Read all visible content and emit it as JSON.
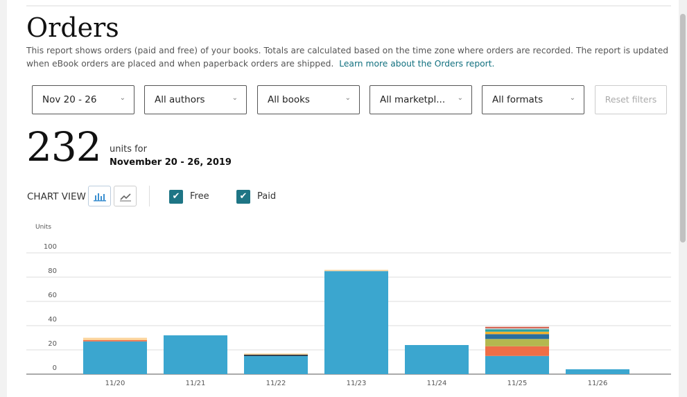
{
  "title": "Orders",
  "description": "This report shows orders (paid and free) of your books. Totals are calculated based on the time zone where orders are recorded. The report is updated when eBook orders are placed and when paperback orders are shipped.",
  "learn_more": "Learn more about the Orders report.",
  "filters": [
    "Nov 20 - 26",
    "All authors",
    "All books",
    "All marketpl...",
    "All formats"
  ],
  "reset_label": "Reset filters",
  "total_units": "232",
  "units_for": "units for",
  "date_range": "November 20 - 26, 2019",
  "chart_view_label": "CHART VIEW",
  "checkboxes": [
    {
      "label": "Free",
      "checked": true
    },
    {
      "label": "Paid",
      "checked": true
    }
  ],
  "colors": {
    "accent": "#1e7585",
    "bar": "#3ba6cf"
  },
  "chart_data": {
    "type": "bar",
    "stacked": true,
    "ylabel": "Units",
    "ylim": [
      0,
      100
    ],
    "yticks": [
      0,
      20,
      40,
      60,
      80,
      100
    ],
    "categories": [
      "11/20",
      "11/21",
      "11/22",
      "11/23",
      "11/24",
      "11/25",
      "11/26"
    ],
    "series": [
      {
        "color": "#3ba6cf",
        "values": [
          27,
          32,
          15,
          85,
          24,
          15,
          4
        ]
      },
      {
        "color": "#ee6e47",
        "values": [
          1,
          0,
          0,
          0,
          0,
          8,
          0
        ]
      },
      {
        "color": "#b4b84f",
        "values": [
          0,
          0,
          0,
          0,
          0,
          6,
          0
        ]
      },
      {
        "color": "#2a6f9e",
        "values": [
          0,
          0,
          0,
          0,
          0,
          4,
          0
        ]
      },
      {
        "color": "#f0b32e",
        "values": [
          0,
          0,
          0,
          0,
          0,
          2,
          0
        ]
      },
      {
        "color": "#2aa3a0",
        "values": [
          0,
          0,
          0,
          0,
          0,
          2,
          0
        ]
      },
      {
        "color": "#1c2b3a",
        "values": [
          0,
          0,
          1,
          0,
          0,
          0,
          0
        ]
      },
      {
        "color": "#c9c9c9",
        "values": [
          0,
          0,
          0,
          0,
          0,
          1,
          0
        ]
      },
      {
        "color": "#d6503a",
        "values": [
          0,
          0,
          0,
          0,
          0,
          1,
          0
        ]
      },
      {
        "color": "#fcd49c",
        "values": [
          2,
          0,
          1,
          1,
          0,
          0,
          0
        ]
      }
    ]
  }
}
